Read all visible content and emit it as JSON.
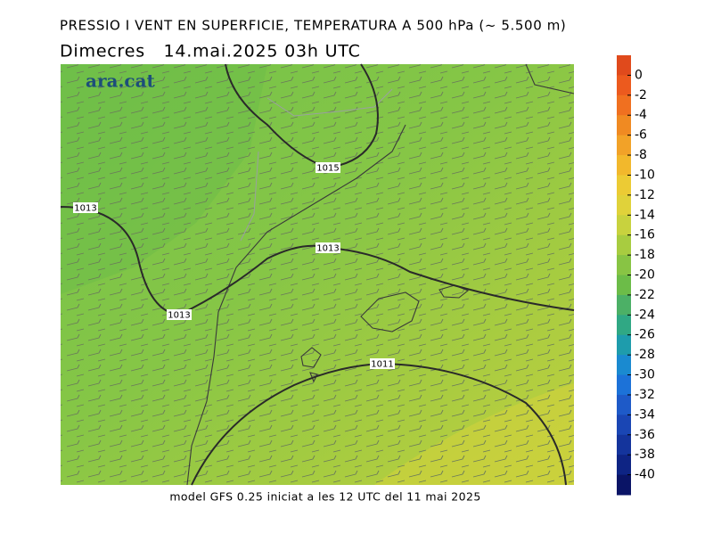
{
  "header": {
    "title": "PRESSIO I VENT EN SUPERFICIE, TEMPERATURA A 500 hPa (~ 5.500 m)",
    "subtitle": "Dimecres   14.mai.2025 03h UTC"
  },
  "logo": "ara.cat",
  "isobars": [
    {
      "label": "1015"
    },
    {
      "label": "1013"
    },
    {
      "label": "1013"
    },
    {
      "label": "1013"
    },
    {
      "label": "1011"
    }
  ],
  "footer": "model GFS 0.25 iniciat a les 12 UTC del 11 mai 2025",
  "colorbar": {
    "vlim": [
      2,
      -42
    ],
    "ticks": [
      0,
      -2,
      -4,
      -6,
      -8,
      -10,
      -12,
      -14,
      -16,
      -18,
      -20,
      -22,
      -24,
      -26,
      -28,
      -30,
      -32,
      -34,
      -36,
      -38,
      -40
    ],
    "colors": [
      "#e04a1c",
      "#ec5a1e",
      "#f07020",
      "#f08a22",
      "#f2a228",
      "#f2b82c",
      "#eccb34",
      "#e0d23a",
      "#c8d23e",
      "#a8cc40",
      "#88c444",
      "#6cbc48",
      "#4cb066",
      "#30a884",
      "#1e9cac",
      "#1a8ad0",
      "#1c72d8",
      "#1e5ac8",
      "#1a46b4",
      "#14349c",
      "#0e2484",
      "#0a1466"
    ]
  }
}
